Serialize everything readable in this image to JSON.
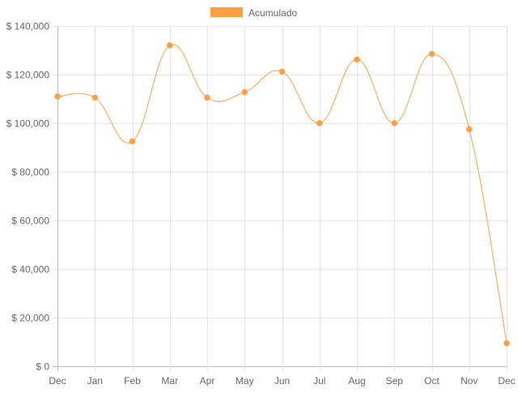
{
  "chart_data": {
    "type": "line",
    "categories": [
      "Dec",
      "Jan",
      "Feb",
      "Mar",
      "Apr",
      "May",
      "Jun",
      "Jul",
      "Aug",
      "Sep",
      "Oct",
      "Nov",
      "Dec"
    ],
    "series": [
      {
        "name": "Acumulado",
        "values": [
          111000,
          110500,
          92500,
          132000,
          110500,
          112800,
          121200,
          100000,
          126200,
          100000,
          128500,
          97500,
          9500
        ],
        "color": "#ff9f40"
      }
    ],
    "ylim": [
      0,
      140000
    ],
    "yticks": [
      0,
      20000,
      40000,
      60000,
      80000,
      100000,
      120000,
      140000
    ],
    "ytick_labels": [
      "$ 0",
      "$ 20,000",
      "$ 40,000",
      "$ 60,000",
      "$ 80,000",
      "$ 100,000",
      "$ 120,000",
      "$ 140,000"
    ],
    "grid": true,
    "legend_position": "top-center",
    "curve": "smooth"
  },
  "colors": {
    "grid": "#e6e6e6",
    "axis": "#bdbdbd",
    "tick_text": "#666666",
    "series": "#ff9f40"
  }
}
